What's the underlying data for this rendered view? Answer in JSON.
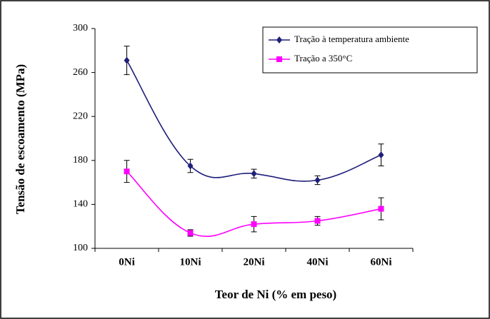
{
  "chart_data": {
    "type": "line",
    "x_label": "Teor de Ni (% em peso)",
    "y_label": "Tensão de escoamento (MPa)",
    "categories": [
      "0Ni",
      "10Ni",
      "20Ni",
      "40Ni",
      "60Ni"
    ],
    "series": [
      {
        "name": "Tração à temperatura ambiente",
        "color": "#1f1f7a",
        "marker": "diamond",
        "values": [
          271,
          175,
          168,
          162,
          185
        ],
        "errors": [
          13,
          6,
          4,
          4,
          10
        ]
      },
      {
        "name": "Tração a 350°C",
        "color": "#ff00ff",
        "marker": "square",
        "values": [
          170,
          114,
          122,
          125,
          136
        ],
        "errors": [
          10,
          3,
          7,
          4,
          10
        ]
      }
    ],
    "ylim": [
      100,
      300
    ],
    "yticks": [
      100,
      140,
      180,
      220,
      260,
      300
    ],
    "grid": false,
    "legend": "upper right"
  }
}
